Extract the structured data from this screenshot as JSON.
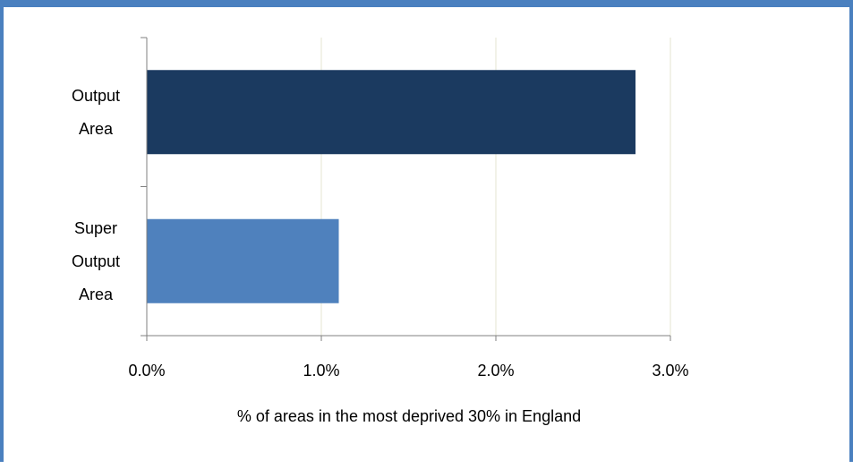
{
  "colors": {
    "frame": "#4a80bf",
    "grid": "#e6e6d2",
    "axis": "#808080"
  },
  "chart_data": {
    "type": "bar",
    "orientation": "horizontal",
    "categories": [
      [
        "Output",
        "Area"
      ],
      [
        "Super",
        "Output",
        "Area"
      ]
    ],
    "values": [
      0.028,
      0.011
    ],
    "bar_colors": [
      "#1b3a60",
      "#4f81bd"
    ],
    "xlim": [
      0,
      0.03
    ],
    "xticks": [
      {
        "value": 0.0,
        "label": "0.0%"
      },
      {
        "value": 0.01,
        "label": "1.0%"
      },
      {
        "value": 0.02,
        "label": "2.0%"
      },
      {
        "value": 0.03,
        "label": "3.0%"
      }
    ],
    "xlabel": "% of areas in the most deprived 30% in England",
    "ylabel": "",
    "title": "",
    "grid": "vertical",
    "legend": "none"
  }
}
